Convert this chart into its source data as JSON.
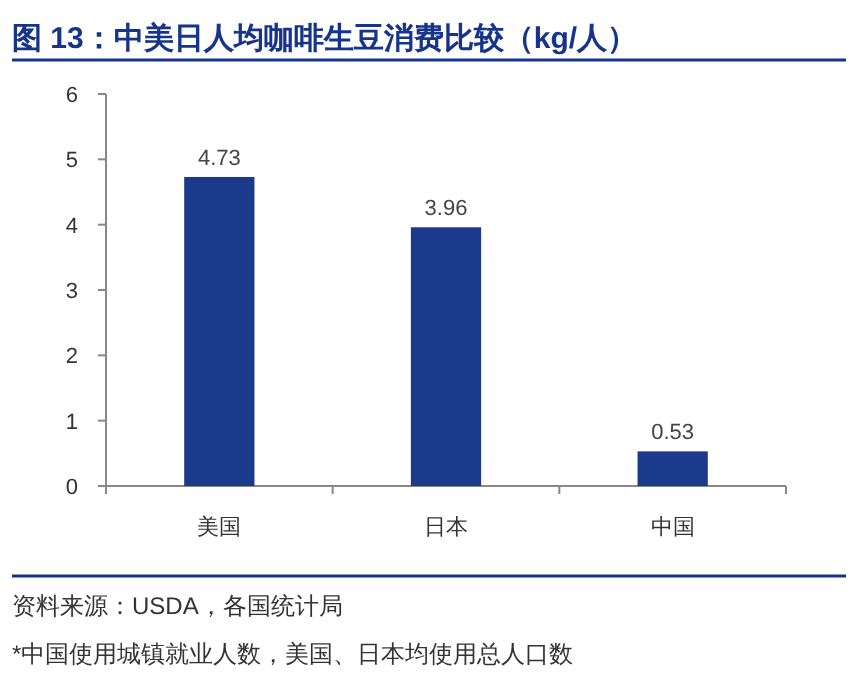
{
  "chart_data": {
    "type": "bar",
    "title": "图 13：中美日人均咖啡生豆消费比较（kg/人）",
    "categories": [
      "美国",
      "日本",
      "中国"
    ],
    "values": [
      4.73,
      3.96,
      0.53
    ],
    "color": "#1b3a8c",
    "ylim": [
      0,
      6
    ],
    "yticks": [
      0,
      1,
      2,
      3,
      4,
      5,
      6
    ],
    "data_labels": true,
    "grid": false,
    "annotations": [
      "资料来源：USDA，各国统计局",
      "*中国使用城镇就业人数，美国、日本均使用总人口数"
    ]
  }
}
